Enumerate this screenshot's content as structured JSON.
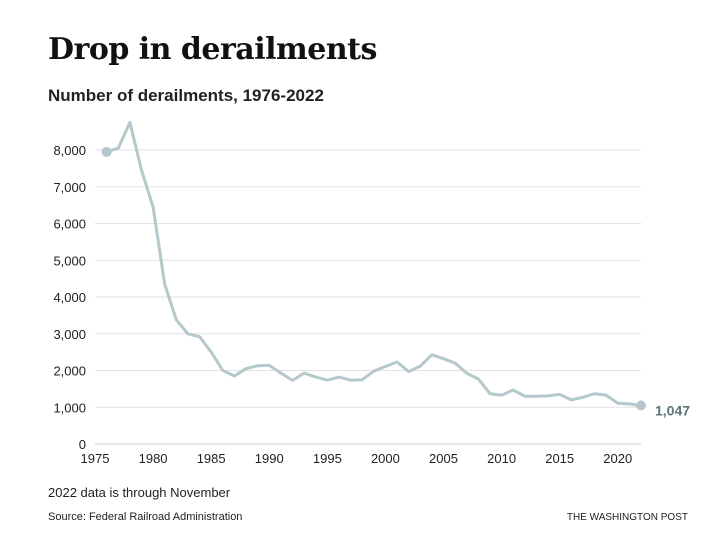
{
  "chart_data": {
    "type": "line",
    "title": "Drop in derailments",
    "subtitle": "Number of derailments, 1976-2022",
    "x": [
      1976,
      1977,
      1978,
      1979,
      1980,
      1981,
      1982,
      1983,
      1984,
      1985,
      1986,
      1987,
      1988,
      1989,
      1990,
      1991,
      1992,
      1993,
      1994,
      1995,
      1996,
      1997,
      1998,
      1999,
      2000,
      2001,
      2002,
      2003,
      2004,
      2005,
      2006,
      2007,
      2008,
      2009,
      2010,
      2011,
      2012,
      2013,
      2014,
      2015,
      2016,
      2017,
      2018,
      2019,
      2020,
      2021,
      2022
    ],
    "values": [
      7950,
      8050,
      8750,
      7450,
      6450,
      4350,
      3380,
      3000,
      2920,
      2500,
      2000,
      1850,
      2050,
      2130,
      2140,
      1930,
      1730,
      1930,
      1820,
      1740,
      1820,
      1740,
      1750,
      1980,
      2110,
      2230,
      1970,
      2120,
      2430,
      2320,
      2200,
      1930,
      1770,
      1370,
      1330,
      1470,
      1300,
      1300,
      1310,
      1350,
      1200,
      1270,
      1370,
      1330,
      1110,
      1090,
      1047
    ],
    "xticks": [
      "1975",
      "1980",
      "1985",
      "1990",
      "1995",
      "2000",
      "2005",
      "2010",
      "2015",
      "2020"
    ],
    "xtick_values": [
      1975,
      1980,
      1985,
      1990,
      1995,
      2000,
      2005,
      2010,
      2015,
      2020
    ],
    "yticks": [
      "0",
      "1,000",
      "2,000",
      "3,000",
      "4,000",
      "5,000",
      "6,000",
      "7,000",
      "8,000"
    ],
    "ytick_values": [
      0,
      1000,
      2000,
      3000,
      4000,
      5000,
      6000,
      7000,
      8000
    ],
    "xlim": [
      1975,
      2022
    ],
    "ylim": [
      0,
      8000
    ],
    "grid": true,
    "end_label": "1,047",
    "line_color": "#b5c8cb",
    "label_color": "#5c7378",
    "xlabel": "",
    "ylabel": ""
  },
  "footer": {
    "note": "2022 data is through November",
    "source": "Source: Federal Railroad Administration",
    "credit": "THE WASHINGTON POST"
  }
}
